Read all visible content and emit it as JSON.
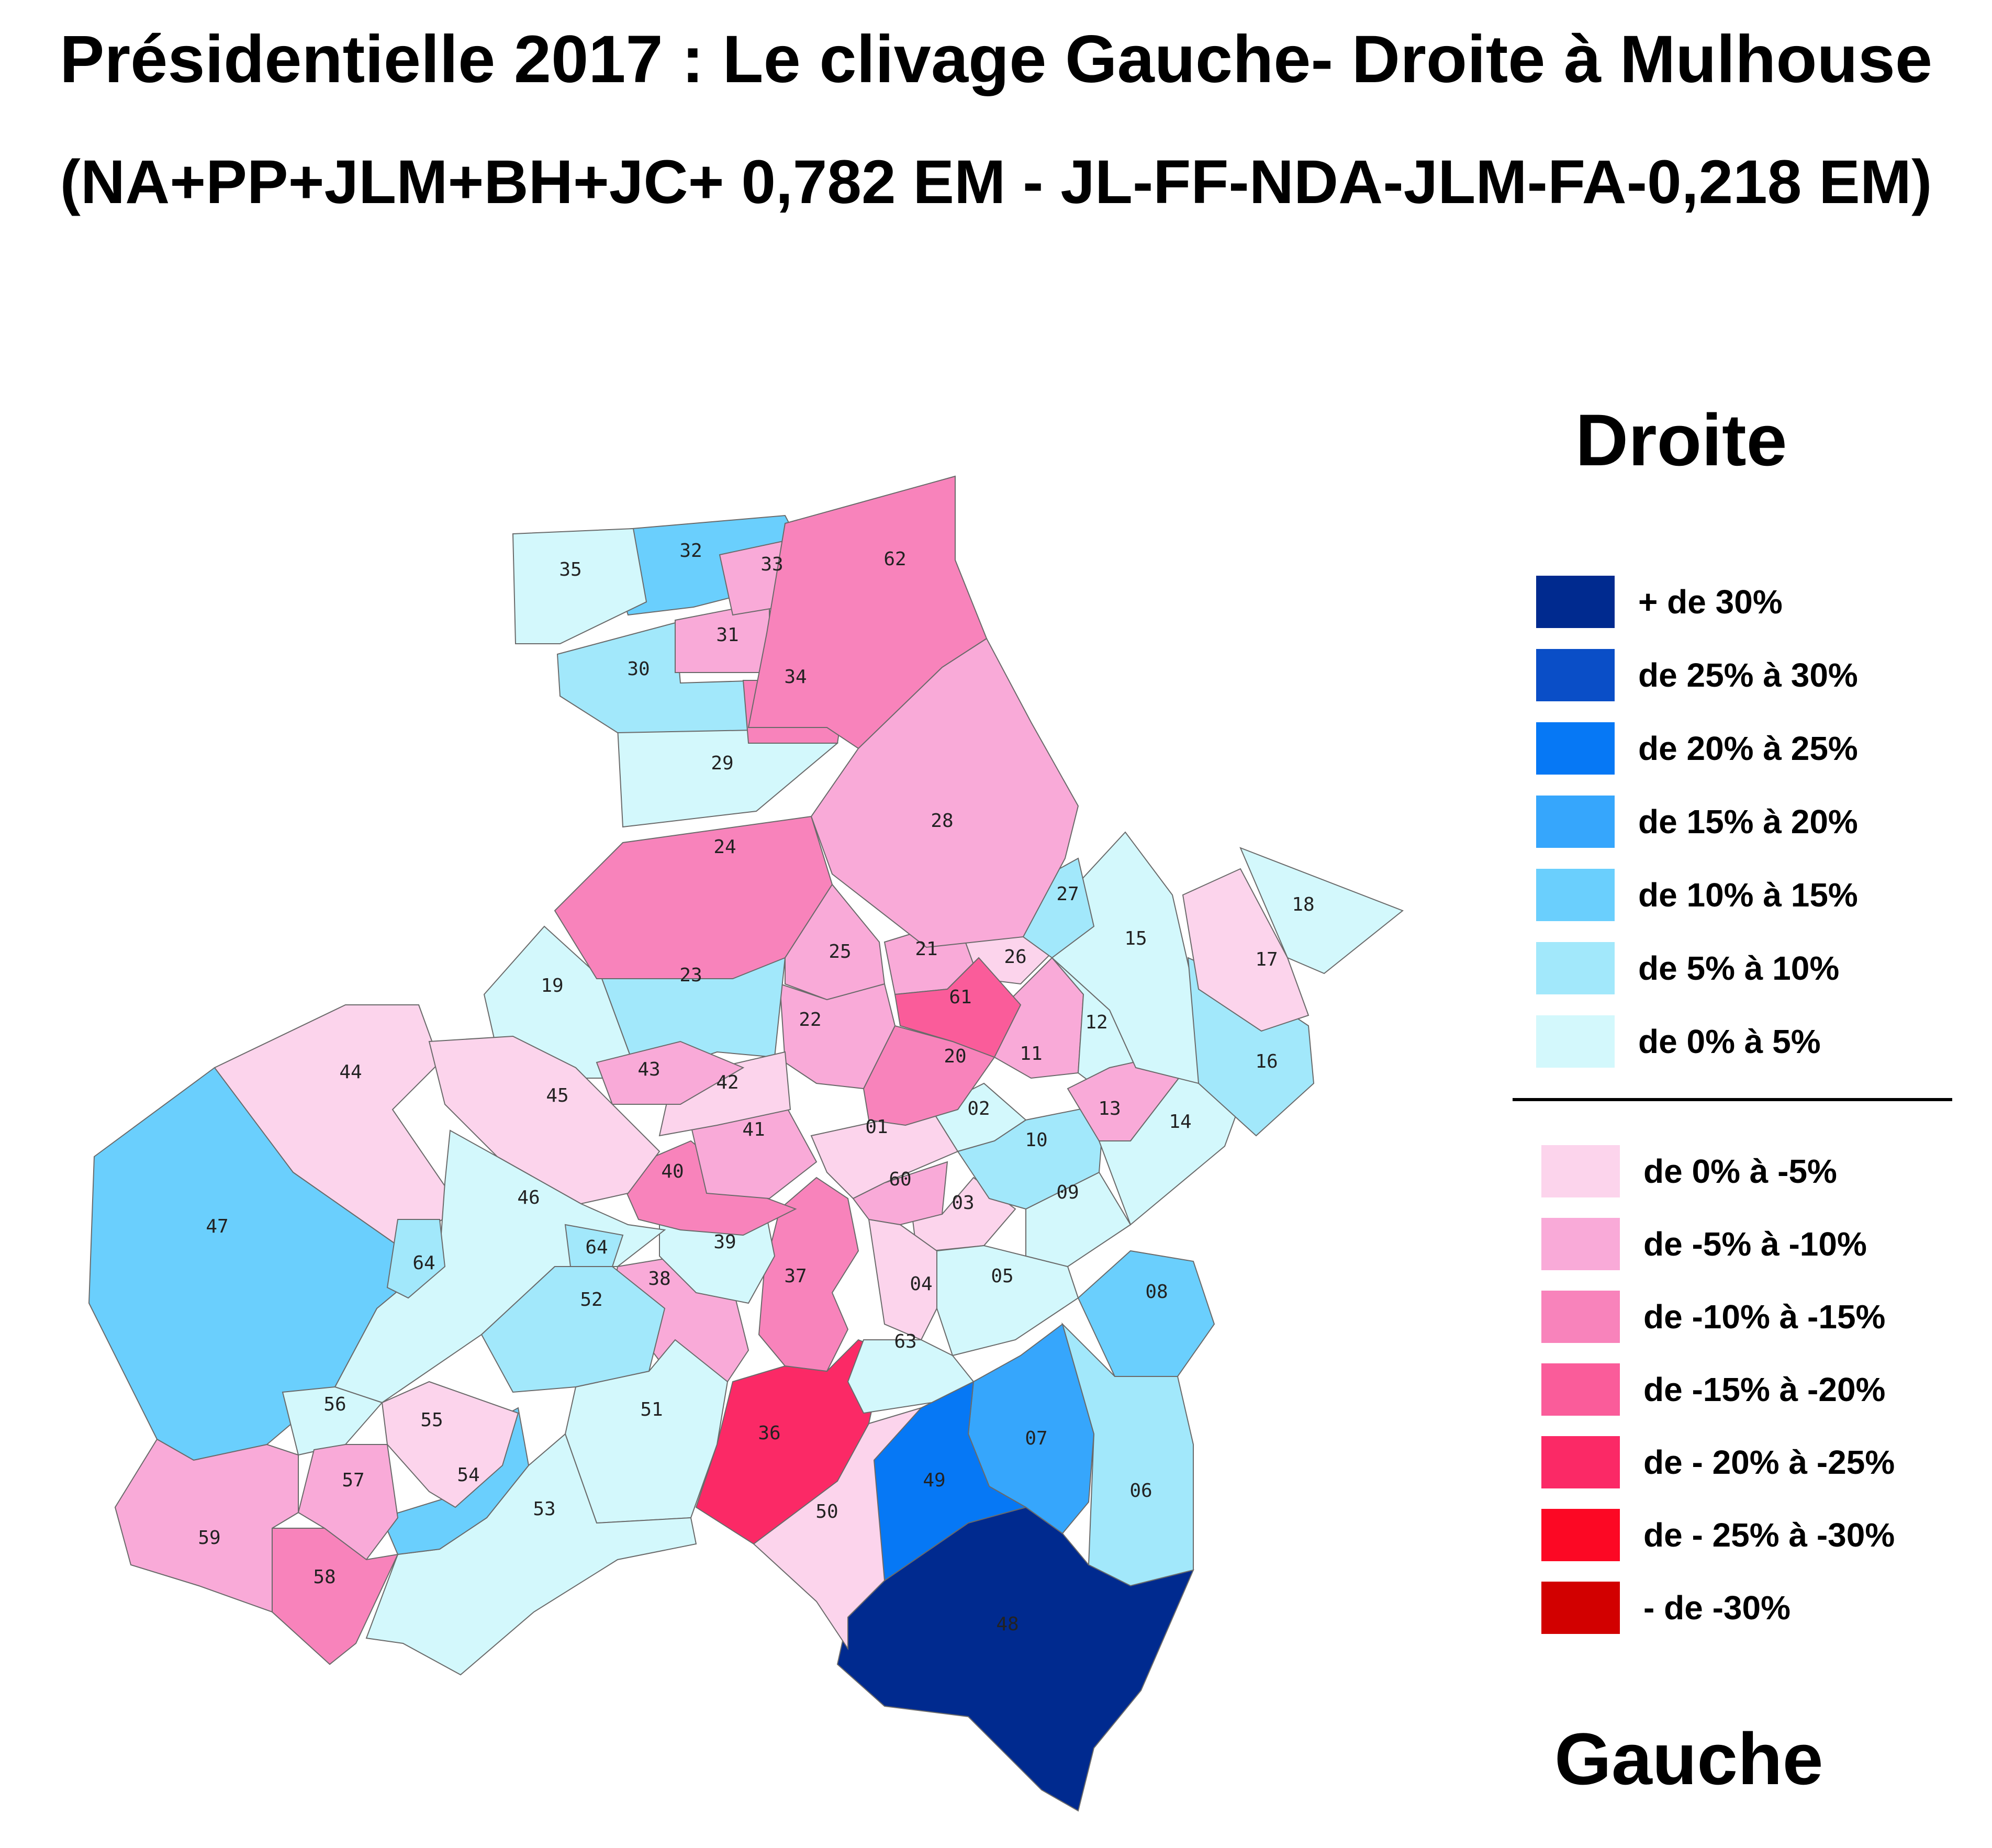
{
  "title": {
    "line1": "Présidentielle 2017 : Le clivage Gauche- Droite à Mulhouse",
    "line2": "(NA+PP+JLM+BH+JC+ 0,782 EM - JL-FF-NDA-JLM-FA-0,218 EM)"
  },
  "legend": {
    "top_heading": "Droite",
    "bottom_heading": "Gauche",
    "droite": [
      {
        "label": "+ de 30%",
        "color": "#002a8f"
      },
      {
        "label": "de 25% à 30%",
        "color": "#0a4ec7"
      },
      {
        "label": "de 20% à 25%",
        "color": "#0678f5"
      },
      {
        "label": "de 15% à 20%",
        "color": "#36a6fc"
      },
      {
        "label": "de 10% à 15%",
        "color": "#6acffd"
      },
      {
        "label": "de 5% à 10%",
        "color": "#a2e8fb"
      },
      {
        "label": "de 0% à 5%",
        "color": "#d3f8fc"
      }
    ],
    "gauche": [
      {
        "label": "de 0% à -5%",
        "color": "#fcd4ec"
      },
      {
        "label": "de -5% à -10%",
        "color": "#f9aad8"
      },
      {
        "label": "de -10% à -15%",
        "color": "#f883bb"
      },
      {
        "label": "de -15% à -20%",
        "color": "#fa5c9a"
      },
      {
        "label": "de - 20% à -25%",
        "color": "#fb2966"
      },
      {
        "label": "de - 25% à -30%",
        "color": "#fc0824"
      },
      {
        "label": "- de -30%",
        "color": "#d20000"
      }
    ]
  },
  "districts": [
    {
      "id": "01",
      "class": "de 0% à -5%"
    },
    {
      "id": "02",
      "class": "de 0% à 5%"
    },
    {
      "id": "03",
      "class": "de 0% à -5%"
    },
    {
      "id": "04",
      "class": "de 0% à -5%"
    },
    {
      "id": "05",
      "class": "de 0% à 5%"
    },
    {
      "id": "06",
      "class": "de 5% à 10%"
    },
    {
      "id": "07",
      "class": "de 15% à 20%"
    },
    {
      "id": "08",
      "class": "de 10% à 15%"
    },
    {
      "id": "09",
      "class": "de 0% à 5%"
    },
    {
      "id": "10",
      "class": "de 5% à 10%"
    },
    {
      "id": "11",
      "class": "de -5% à -10%"
    },
    {
      "id": "12",
      "class": "de 0% à 5%"
    },
    {
      "id": "13",
      "class": "de -5% à -10%"
    },
    {
      "id": "14",
      "class": "de 0% à 5%"
    },
    {
      "id": "15",
      "class": "de 0% à 5%"
    },
    {
      "id": "16",
      "class": "de 5% à 10%"
    },
    {
      "id": "17",
      "class": "de 0% à -5%"
    },
    {
      "id": "18",
      "class": "de 0% à 5%"
    },
    {
      "id": "19",
      "class": "de 0% à 5%"
    },
    {
      "id": "20",
      "class": "de -10% à -15%"
    },
    {
      "id": "21",
      "class": "de -5% à -10%"
    },
    {
      "id": "22",
      "class": "de -5% à -10%"
    },
    {
      "id": "23",
      "class": "de 5% à 10%"
    },
    {
      "id": "24",
      "class": "de -10% à -15%"
    },
    {
      "id": "25",
      "class": "de -5% à -10%"
    },
    {
      "id": "26",
      "class": "de 0% à -5%"
    },
    {
      "id": "27",
      "class": "de 5% à 10%"
    },
    {
      "id": "28",
      "class": "de -5% à -10%"
    },
    {
      "id": "29",
      "class": "de 0% à 5%"
    },
    {
      "id": "30",
      "class": "de 5% à 10%"
    },
    {
      "id": "31",
      "class": "de -5% à -10%"
    },
    {
      "id": "32",
      "class": "de 10% à 15%"
    },
    {
      "id": "33",
      "class": "de -5% à -10%"
    },
    {
      "id": "34",
      "class": "de -10% à -15%"
    },
    {
      "id": "35",
      "class": "de 0% à 5%"
    },
    {
      "id": "36",
      "class": "de - 20% à -25%"
    },
    {
      "id": "37",
      "class": "de -10% à -15%"
    },
    {
      "id": "38",
      "class": "de -5% à -10%"
    },
    {
      "id": "39",
      "class": "de 0% à 5%"
    },
    {
      "id": "40",
      "class": "de -10% à -15%"
    },
    {
      "id": "41",
      "class": "de -5% à -10%"
    },
    {
      "id": "42",
      "class": "de 0% à -5%"
    },
    {
      "id": "43",
      "class": "de -5% à -10%"
    },
    {
      "id": "44",
      "class": "de 0% à -5%"
    },
    {
      "id": "45",
      "class": "de 0% à -5%"
    },
    {
      "id": "46",
      "class": "de 0% à 5%"
    },
    {
      "id": "47",
      "class": "de 10% à 15%"
    },
    {
      "id": "48",
      "class": "+ de 30%"
    },
    {
      "id": "49",
      "class": "de 20% à 25%"
    },
    {
      "id": "50",
      "class": "de 0% à -5%"
    },
    {
      "id": "51",
      "class": "de 0% à 5%"
    },
    {
      "id": "52",
      "class": "de 5% à 10%"
    },
    {
      "id": "53",
      "class": "de 0% à 5%"
    },
    {
      "id": "54",
      "class": "de 10% à 15%"
    },
    {
      "id": "55",
      "class": "de 0% à -5%"
    },
    {
      "id": "56",
      "class": "de 0% à 5%"
    },
    {
      "id": "57",
      "class": "de -5% à -10%"
    },
    {
      "id": "58",
      "class": "de -10% à -15%"
    },
    {
      "id": "59",
      "class": "de -5% à -10%"
    },
    {
      "id": "60",
      "class": "de -5% à -10%"
    },
    {
      "id": "61",
      "class": "de -15% à -20%"
    },
    {
      "id": "62",
      "class": "de -10% à -15%"
    },
    {
      "id": "63",
      "class": "de 0% à 5%"
    },
    {
      "id": "64",
      "class": "de 5% à 10%"
    }
  ]
}
